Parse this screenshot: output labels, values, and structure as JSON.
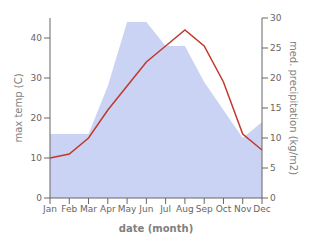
{
  "chart_data": {
    "type": "line",
    "categories": [
      "Jan",
      "Feb",
      "Mar",
      "Apr",
      "May",
      "Jun",
      "Jul",
      "Aug",
      "Sep",
      "Oct",
      "Nov",
      "Dec"
    ],
    "series": [
      {
        "type": "area",
        "color": "#b8c4f0",
        "values": [
          16,
          16,
          16,
          28,
          44,
          44,
          38,
          38,
          29,
          22,
          15,
          19
        ]
      },
      {
        "type": "line",
        "color": "#c0392b",
        "values": [
          10,
          11,
          15,
          22,
          28,
          34,
          38,
          42,
          38,
          29,
          16,
          12
        ]
      }
    ],
    "xlabel": "date (month)",
    "ylabel": "max temp (C)",
    "y2label": "med. precipitation (kg/m2)",
    "ylim": [
      0,
      45
    ],
    "yticks": [
      0,
      10,
      20,
      30,
      40
    ],
    "y2lim": [
      0,
      30
    ],
    "y2ticks": [
      0,
      5,
      10,
      15,
      20,
      25,
      30
    ],
    "grid": false
  }
}
